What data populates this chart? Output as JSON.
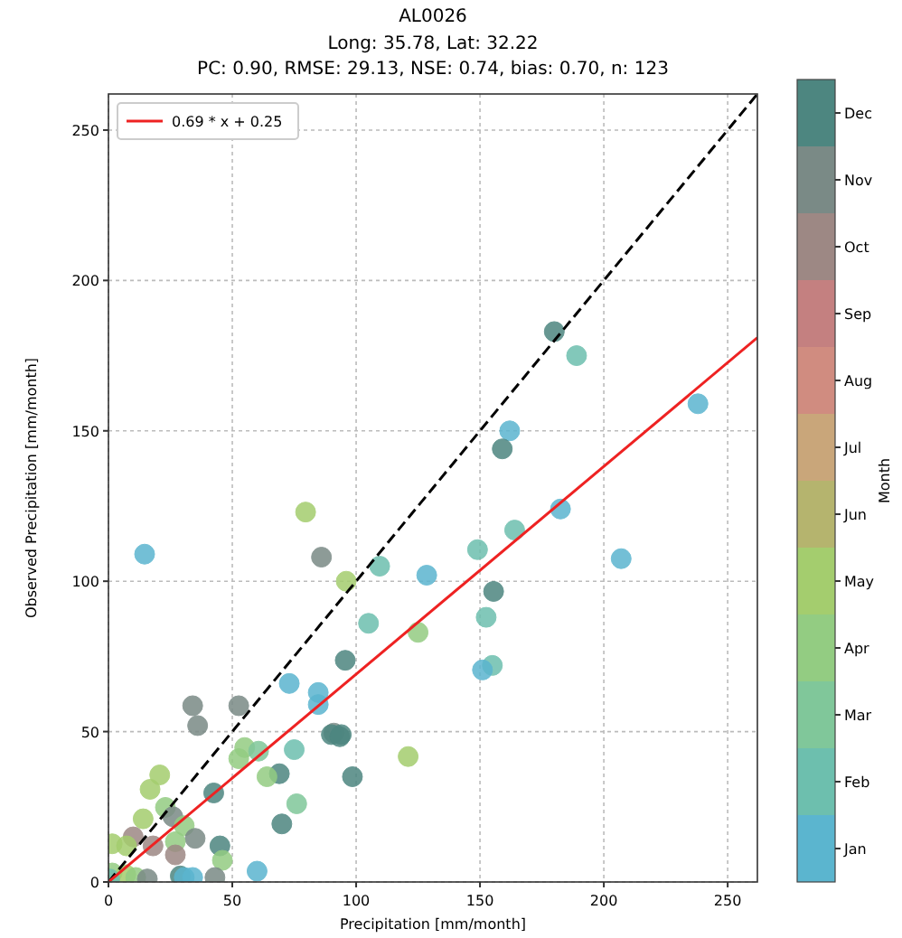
{
  "chart_data": {
    "type": "scatter",
    "title": "AL0026",
    "subtitle": "Long: 35.78, Lat: 32.22\nPC: 0.90, RMSE: 29.13, NSE: 0.74, bias: 0.70, n: 123",
    "xlabel": "Precipitation [mm/month]",
    "ylabel": "Observed Precipitation [mm/month]",
    "clabel": "Month",
    "xlim": [
      0,
      262
    ],
    "ylim": [
      0,
      262
    ],
    "xticks": [
      0,
      50,
      100,
      150,
      200,
      250
    ],
    "yticks": [
      0,
      50,
      100,
      150,
      200,
      250
    ],
    "clim": [
      0.5,
      12.5
    ],
    "cticks": [
      {
        "value": 1,
        "label": "Jan"
      },
      {
        "value": 2,
        "label": "Feb"
      },
      {
        "value": 3,
        "label": "Mar"
      },
      {
        "value": 4,
        "label": "Apr"
      },
      {
        "value": 5,
        "label": "May"
      },
      {
        "value": 6,
        "label": "Jun"
      },
      {
        "value": 7,
        "label": "Jul"
      },
      {
        "value": 8,
        "label": "Aug"
      },
      {
        "value": 9,
        "label": "Sep"
      },
      {
        "value": 10,
        "label": "Oct"
      },
      {
        "value": 11,
        "label": "Nov"
      },
      {
        "value": 12,
        "label": "Dec"
      }
    ],
    "grid": true,
    "legend": "top left",
    "series": [
      {
        "marker": "circle",
        "colors": [
          "#5bb5cf",
          "#a4cd6e",
          "#7a8a86",
          "#a4cd6e",
          "#6dbfae",
          "#5bb5cf",
          "#6dbfae",
          "#4d8680",
          "#6dbfae",
          "#5bb5cf",
          "#5bb5cf",
          "#4d8680",
          "#5bb5cf",
          "#6dbfae",
          "#6dbfae",
          "#5bb5cf",
          "#4d8680",
          "#6dbfae",
          "#6dbfae",
          "#5bb5cf",
          "#93cc82",
          "#4d8680",
          "#a4cd6e",
          "#7a8a86",
          "#4d8680",
          "#4d8680",
          "#5bb5cf",
          "#5bb5cf",
          "#6dbfae",
          "#4d8680",
          "#5bb5cf",
          "#7a8a86",
          "#7a8a86",
          "#7a8a86",
          "#4d8680",
          "#4d8680",
          "#93cc82",
          "#93cc82",
          "#80c79a",
          "#93cc82",
          "#80c79a",
          "#4d8680",
          "#a4cd6e",
          "#a4cd6e",
          "#4d8680",
          "#93cc82",
          "#7a8a86",
          "#a4cd6e",
          "#93cc82",
          "#9d8884",
          "#7a8a86",
          "#93cc82",
          "#a4cd6e",
          "#a4cd6e",
          "#9d8884",
          "#4d8680",
          "#9d8884",
          "#93cc82",
          "#5bb5cf",
          "#93cc82",
          "#a4cd6e",
          "#93cc82",
          "#7a8a86",
          "#4d8680",
          "#5bb5cf",
          "#5bb5cf",
          "#7a8a86",
          "#6dbfae"
        ],
        "x": [
          14.6,
          79.6,
          86,
          96,
          109.5,
          128.5,
          105,
          180,
          189,
          238,
          162,
          159,
          182.5,
          164,
          149,
          207,
          155.5,
          152.5,
          155,
          151,
          125,
          95.6,
          121,
          91,
          94,
          98.5,
          84.7,
          73,
          75,
          69,
          84.7,
          34,
          52.6,
          36,
          90,
          93.4,
          55,
          52.6,
          60.6,
          64,
          76,
          70,
          20.7,
          16.8,
          42.5,
          23,
          26,
          14,
          30.6,
          10,
          35,
          27,
          1.5,
          7.3,
          18,
          45,
          27,
          46,
          60,
          1.5,
          7,
          11,
          15.7,
          29,
          30.6,
          34,
          43,
          0.5
        ],
        "values": [
          109,
          123,
          108,
          100,
          105,
          102,
          86,
          183,
          175,
          159,
          150,
          144,
          124,
          117,
          110.5,
          107.5,
          96.6,
          88,
          72,
          70.5,
          83,
          73.7,
          41.7,
          49.5,
          49,
          35,
          59,
          66,
          44,
          36,
          63,
          58.6,
          58.6,
          52,
          49,
          48.3,
          44.7,
          41,
          43.5,
          35,
          26,
          19.3,
          35.6,
          30.8,
          29.6,
          24.8,
          21.7,
          21,
          18.7,
          15,
          14.5,
          13.4,
          12.7,
          12,
          12,
          12,
          9,
          7.2,
          3.6,
          3,
          2.4,
          1.5,
          1,
          2,
          1.5,
          1.5,
          1.5,
          1
        ],
        "cvalues": [
          1,
          5,
          11,
          5,
          2,
          1,
          2,
          12,
          2,
          1,
          1,
          12,
          1,
          2,
          2,
          1,
          12,
          2,
          2,
          1,
          4,
          12,
          5,
          11,
          12,
          12,
          1,
          1,
          2,
          12,
          1,
          11,
          11,
          11,
          12,
          12,
          4,
          4,
          3,
          4,
          3,
          12,
          5,
          5,
          12,
          4,
          11,
          5,
          4,
          10,
          11,
          4,
          5,
          5,
          10,
          12,
          10,
          4,
          1,
          4,
          5,
          4,
          11,
          12,
          1,
          1,
          11,
          2
        ]
      },
      {
        "type": "line",
        "marker": "none",
        "color": "#000000",
        "line_style": "dashed",
        "x": [
          0,
          262
        ],
        "values": [
          0,
          262
        ]
      },
      {
        "type": "line",
        "marker": "none",
        "name": "0.69 * x + 0.25",
        "color": "#ee2222",
        "line_style": "solid",
        "x": [
          0,
          262
        ],
        "values": [
          0,
          181
        ]
      }
    ]
  }
}
